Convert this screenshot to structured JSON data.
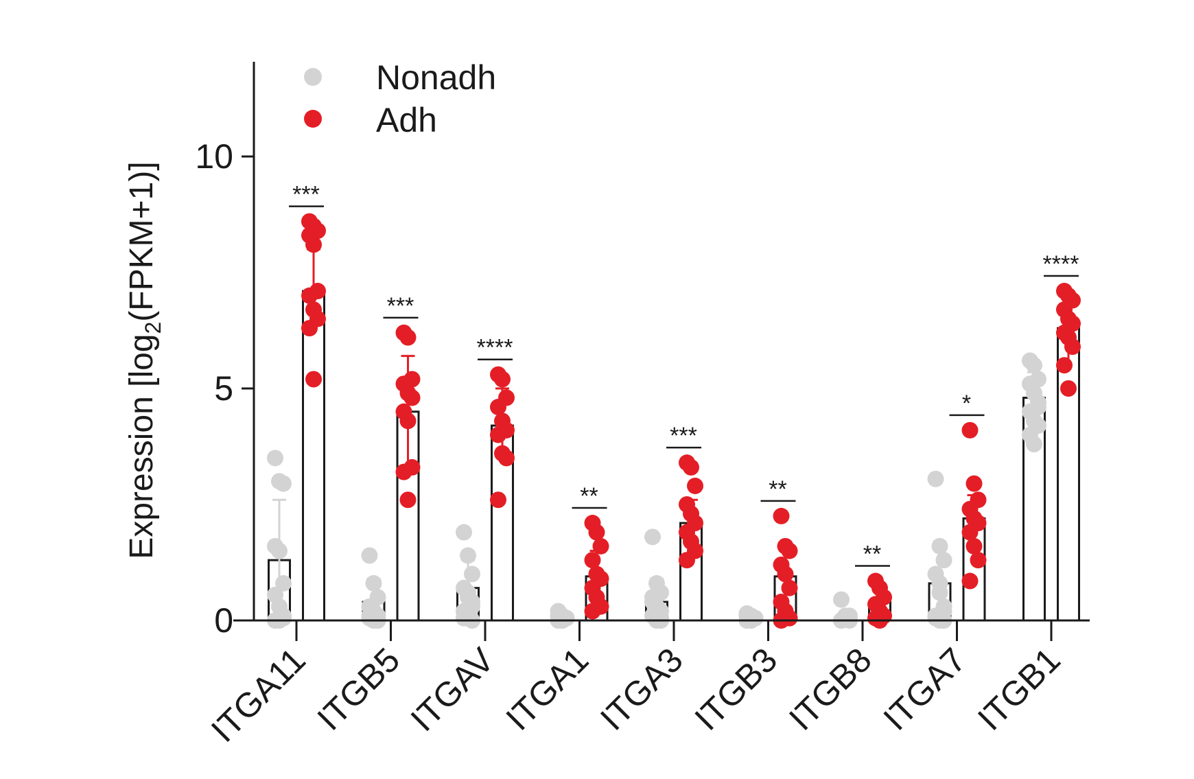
{
  "chart_data": {
    "type": "bar",
    "ylabel_main": "Expression [log",
    "ylabel_sub": "2",
    "ylabel_end": "(FPKM+1)]",
    "ylim": [
      0,
      12
    ],
    "yticks": [
      0,
      5,
      10
    ],
    "grid": false,
    "legend_position": "top-left",
    "categories": [
      "ITGA11",
      "ITGB5",
      "ITGAV",
      "ITGA1",
      "ITGA3",
      "ITGB3",
      "ITGB8",
      "ITGA7",
      "ITGB1"
    ],
    "series": [
      {
        "name": "Nonadh",
        "color": "#d3d3d3",
        "values": [
          1.3,
          0.4,
          0.7,
          0.05,
          0.4,
          0.05,
          0.05,
          0.8,
          4.8
        ],
        "error": [
          1.3,
          0.5,
          0.6,
          0.05,
          0.5,
          0.05,
          0.1,
          0.9,
          0.55
        ],
        "points": [
          [
            3.5,
            3.0,
            2.95,
            1.6,
            1.5,
            0.8,
            0.55,
            0.3,
            0.1,
            0.0,
            0.0,
            0.05
          ],
          [
            1.4,
            0.8,
            0.5,
            0.3,
            0.2,
            0.1,
            0.05,
            0.0,
            0.0,
            0.1,
            0.15,
            0.0
          ],
          [
            1.9,
            1.4,
            1.0,
            0.7,
            0.5,
            0.4,
            0.2,
            0.1,
            0.0,
            0.05,
            0.6,
            0.3
          ],
          [
            0.2,
            0.1,
            0.05,
            0.0,
            0.0,
            0.05,
            0.1,
            0.0
          ],
          [
            1.8,
            0.8,
            0.6,
            0.4,
            0.3,
            0.2,
            0.1,
            0.0,
            0.05,
            0.5,
            0.2,
            0.0
          ],
          [
            0.15,
            0.1,
            0.05,
            0.0,
            0.0,
            0.05,
            0.1,
            0.0
          ],
          [
            0.45,
            0.1,
            0.0,
            0.0,
            0.05,
            0.1,
            0.0,
            0.05
          ],
          [
            3.05,
            1.6,
            1.3,
            1.0,
            0.6,
            0.3,
            0.1,
            0.0,
            0.0,
            0.05,
            0.8,
            0.2
          ],
          [
            5.6,
            5.5,
            5.2,
            5.1,
            4.9,
            4.7,
            4.5,
            4.3,
            4.2,
            4.0,
            3.8,
            4.6
          ]
        ]
      },
      {
        "name": "Adh",
        "color": "#e41e26",
        "values": [
          7.1,
          4.5,
          4.2,
          0.95,
          2.1,
          0.95,
          0.4,
          2.2,
          6.3
        ],
        "error": [
          0.9,
          1.2,
          0.8,
          0.55,
          0.5,
          0.6,
          0.3,
          0.5,
          0.7
        ],
        "points": [
          [
            8.6,
            8.5,
            8.4,
            8.3,
            8.1,
            7.1,
            7.0,
            6.7,
            6.5,
            6.3,
            5.2
          ],
          [
            6.2,
            6.1,
            5.2,
            5.1,
            4.9,
            4.8,
            4.5,
            4.3,
            3.3,
            3.2,
            2.6
          ],
          [
            5.3,
            5.2,
            4.8,
            4.6,
            4.3,
            4.1,
            4.0,
            3.6,
            3.5,
            2.6
          ],
          [
            2.1,
            1.9,
            1.6,
            1.3,
            1.0,
            0.9,
            0.7,
            0.5,
            0.3,
            0.2
          ],
          [
            3.4,
            3.3,
            2.9,
            2.5,
            2.3,
            2.1,
            1.9,
            1.7,
            1.5,
            1.3
          ],
          [
            2.25,
            1.6,
            1.5,
            1.2,
            1.0,
            0.7,
            0.4,
            0.2,
            0.05,
            0.0
          ],
          [
            0.85,
            0.7,
            0.5,
            0.35,
            0.2,
            0.1,
            0.05,
            0.0
          ],
          [
            4.1,
            2.95,
            2.6,
            2.4,
            2.2,
            2.1,
            1.9,
            1.6,
            1.3,
            0.85
          ],
          [
            7.1,
            7.0,
            6.9,
            6.7,
            6.5,
            6.4,
            6.2,
            6.1,
            5.9,
            5.5,
            5.0
          ]
        ]
      }
    ],
    "significance": [
      "***",
      "***",
      "****",
      "**",
      "***",
      "**",
      "**",
      "*",
      "****"
    ]
  }
}
